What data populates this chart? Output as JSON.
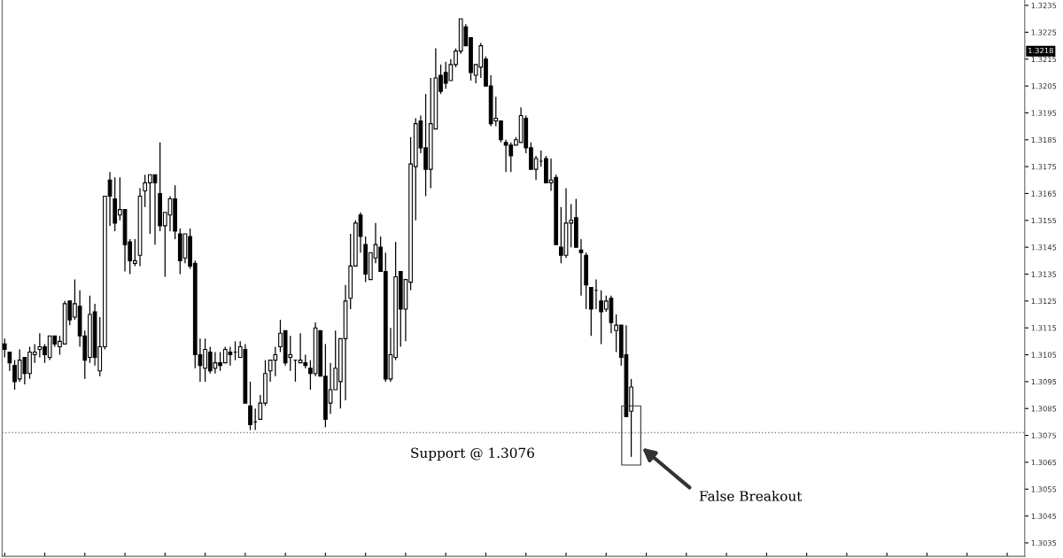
{
  "chart_data": {
    "type": "candlestick",
    "categories": [
      null,
      null,
      null,
      null,
      null,
      null,
      null,
      null,
      null,
      null,
      null,
      null,
      null,
      null,
      null,
      null,
      null,
      null,
      null,
      null,
      null,
      null,
      null,
      null,
      null,
      null,
      null,
      null,
      null,
      null,
      null,
      null,
      null,
      null,
      null,
      null,
      null,
      null,
      null,
      null,
      null,
      null,
      null,
      null,
      null,
      null,
      null,
      null,
      null,
      null,
      null,
      null,
      null,
      null,
      null,
      null,
      null,
      null,
      null,
      null,
      null,
      null,
      null,
      null,
      null,
      null,
      null,
      null,
      null,
      null,
      null,
      null,
      null,
      null,
      null,
      null,
      null,
      null,
      null,
      null,
      null,
      null,
      null,
      null,
      null,
      null,
      null,
      null,
      null,
      null,
      null,
      null,
      null,
      null,
      null,
      null,
      null,
      null,
      null,
      null,
      null,
      null,
      null,
      null,
      null,
      null,
      null,
      null,
      null,
      null,
      null,
      null,
      null,
      null,
      null,
      null,
      null,
      null,
      null,
      null,
      null,
      null,
      null,
      null,
      null,
      null,
      null,
      null,
      null,
      null,
      null,
      null,
      null,
      null,
      null,
      null,
      null,
      null,
      null,
      null,
      null,
      null,
      null,
      null,
      null,
      null,
      null,
      null,
      null,
      null,
      null,
      null,
      null,
      null,
      null,
      null,
      null,
      null,
      null,
      null,
      null,
      null,
      null,
      null,
      null,
      null,
      null,
      null,
      null,
      null,
      null,
      null,
      null,
      null,
      null,
      null,
      null,
      null,
      null,
      null,
      null,
      null,
      null,
      null,
      null,
      null,
      null,
      null,
      null,
      null,
      null,
      null,
      null,
      null,
      null,
      null,
      null,
      null,
      null,
      null,
      null,
      null,
      null,
      null
    ],
    "ohlc": [
      [
        1.3109,
        1.3111,
        1.3104,
        1.3107
      ],
      [
        1.3106,
        1.3106,
        1.3099,
        1.3102
      ],
      [
        1.3101,
        1.3103,
        1.3092,
        1.3095
      ],
      [
        1.3096,
        1.3107,
        1.3095,
        1.3103
      ],
      [
        1.3104,
        1.3104,
        1.3094,
        1.3098
      ],
      [
        1.3098,
        1.3108,
        1.3096,
        1.3106
      ],
      [
        1.3105,
        1.3109,
        1.3102,
        1.3106
      ],
      [
        1.3107,
        1.3113,
        1.3104,
        1.3108
      ],
      [
        1.3108,
        1.3109,
        1.3102,
        1.3105
      ],
      [
        1.3104,
        1.3112,
        1.3103,
        1.3112
      ],
      [
        1.3112,
        1.3112,
        1.3108,
        1.3109
      ],
      [
        1.3108,
        1.3112,
        1.3105,
        1.311
      ],
      [
        1.3109,
        1.3125,
        1.3109,
        1.3124
      ],
      [
        1.3125,
        1.3125,
        1.3116,
        1.3118
      ],
      [
        1.3119,
        1.3133,
        1.3118,
        1.3124
      ],
      [
        1.3123,
        1.3129,
        1.3108,
        1.3112
      ],
      [
        1.3112,
        1.3114,
        1.3096,
        1.3103
      ],
      [
        1.3104,
        1.3127,
        1.3102,
        1.312
      ],
      [
        1.3121,
        1.3124,
        1.3101,
        1.3104
      ],
      [
        1.3099,
        1.3119,
        1.3097,
        1.3108
      ],
      [
        1.3108,
        1.3164,
        1.3107,
        1.3164
      ],
      [
        1.317,
        1.3173,
        1.3153,
        1.3164
      ],
      [
        1.3163,
        1.3171,
        1.3151,
        1.3154
      ],
      [
        1.3157,
        1.3171,
        1.3155,
        1.3159
      ],
      [
        1.3159,
        1.3159,
        1.3136,
        1.3146
      ],
      [
        1.3147,
        1.3148,
        1.3135,
        1.314
      ],
      [
        1.3139,
        1.3148,
        1.3138,
        1.314
      ],
      [
        1.3142,
        1.3167,
        1.3138,
        1.3164
      ],
      [
        1.3166,
        1.3172,
        1.316,
        1.3169
      ],
      [
        1.3169,
        1.3172,
        1.315,
        1.3172
      ],
      [
        1.3172,
        1.3172,
        1.3146,
        1.3169
      ],
      [
        1.3165,
        1.3184,
        1.3151,
        1.3153
      ],
      [
        1.3153,
        1.3158,
        1.3134,
        1.3158
      ],
      [
        1.3157,
        1.3164,
        1.3151,
        1.3163
      ],
      [
        1.3163,
        1.3168,
        1.3148,
        1.3151
      ],
      [
        1.315,
        1.3152,
        1.3135,
        1.314
      ],
      [
        1.3141,
        1.315,
        1.3139,
        1.315
      ],
      [
        1.3149,
        1.3152,
        1.3137,
        1.3138
      ],
      [
        1.3139,
        1.314,
        1.31,
        1.3105
      ],
      [
        1.3105,
        1.3111,
        1.3095,
        1.3101
      ],
      [
        1.31,
        1.3111,
        1.3095,
        1.3107
      ],
      [
        1.3106,
        1.3108,
        1.3098,
        1.3099
      ],
      [
        1.31,
        1.3106,
        1.3098,
        1.3102
      ],
      [
        1.3102,
        1.3106,
        1.3099,
        1.3101
      ],
      [
        1.3102,
        1.3108,
        1.3102,
        1.3107
      ],
      [
        1.3106,
        1.3108,
        1.3101,
        1.3105
      ],
      [
        1.3106,
        1.311,
        1.3103,
        1.3106
      ],
      [
        1.3104,
        1.311,
        1.3104,
        1.3108
      ],
      [
        1.3107,
        1.3109,
        1.3087,
        1.3087
      ],
      [
        1.3086,
        1.3095,
        1.3077,
        1.3079
      ],
      [
        1.308,
        1.3085,
        1.3077,
        1.308
      ],
      [
        1.3081,
        1.309,
        1.3081,
        1.3087
      ],
      [
        1.3087,
        1.3103,
        1.3086,
        1.3098
      ],
      [
        1.3099,
        1.3103,
        1.3095,
        1.3103
      ],
      [
        1.3103,
        1.3108,
        1.3097,
        1.3105
      ],
      [
        1.3108,
        1.3118,
        1.3106,
        1.3113
      ],
      [
        1.3114,
        1.3114,
        1.3101,
        1.3102
      ],
      [
        1.3104,
        1.3112,
        1.3099,
        1.3105
      ],
      [
        1.3103,
        1.3103,
        1.3095,
        1.3103
      ],
      [
        1.3102,
        1.3113,
        1.3102,
        1.3103
      ],
      [
        1.3102,
        1.3105,
        1.31,
        1.3101
      ],
      [
        1.31,
        1.3103,
        1.3092,
        1.3098
      ],
      [
        1.3098,
        1.3117,
        1.3097,
        1.3115
      ],
      [
        1.3114,
        1.3114,
        1.3097,
        1.3097
      ],
      [
        1.3097,
        1.3109,
        1.3078,
        1.3081
      ],
      [
        1.3087,
        1.3102,
        1.3083,
        1.3092
      ],
      [
        1.3092,
        1.3114,
        1.3092,
        1.31
      ],
      [
        1.3095,
        1.3111,
        1.3085,
        1.3111
      ],
      [
        1.3111,
        1.3131,
        1.3088,
        1.3125
      ],
      [
        1.3126,
        1.315,
        1.3122,
        1.3138
      ],
      [
        1.3138,
        1.3155,
        1.3138,
        1.3154
      ],
      [
        1.3157,
        1.3158,
        1.3143,
        1.3149
      ],
      [
        1.3146,
        1.3149,
        1.3132,
        1.3135
      ],
      [
        1.3133,
        1.3143,
        1.3133,
        1.3143
      ],
      [
        1.3141,
        1.3154,
        1.3139,
        1.3146
      ],
      [
        1.3145,
        1.3149,
        1.3136,
        1.3136
      ],
      [
        1.3136,
        1.3143,
        1.3095,
        1.3096
      ],
      [
        1.3096,
        1.3115,
        1.3095,
        1.3105
      ],
      [
        1.3104,
        1.3147,
        1.3103,
        1.3134
      ],
      [
        1.3136,
        1.3136,
        1.3108,
        1.3122
      ],
      [
        1.3122,
        1.3133,
        1.311,
        1.3133
      ],
      [
        1.3132,
        1.3186,
        1.3129,
        1.3176
      ],
      [
        1.3175,
        1.3193,
        1.3155,
        1.3191
      ],
      [
        1.3192,
        1.3194,
        1.318,
        1.3182
      ],
      [
        1.3182,
        1.3202,
        1.3164,
        1.3174
      ],
      [
        1.3174,
        1.3208,
        1.3167,
        1.3191
      ],
      [
        1.3189,
        1.3219,
        1.3189,
        1.3208
      ],
      [
        1.3209,
        1.3213,
        1.3202,
        1.3203
      ],
      [
        1.321,
        1.3214,
        1.3204,
        1.3206
      ],
      [
        1.3207,
        1.3215,
        1.3207,
        1.3213
      ],
      [
        1.3213,
        1.3219,
        1.3212,
        1.3218
      ],
      [
        1.3218,
        1.323,
        1.3217,
        1.323
      ],
      [
        1.3227,
        1.3228,
        1.322,
        1.322
      ],
      [
        1.3223,
        1.3223,
        1.3207,
        1.321
      ],
      [
        1.3209,
        1.3213,
        1.3206,
        1.3213
      ],
      [
        1.3212,
        1.3221,
        1.3208,
        1.322
      ],
      [
        1.3215,
        1.3216,
        1.3205,
        1.3205
      ],
      [
        1.3205,
        1.3209,
        1.319,
        1.3191
      ],
      [
        1.3192,
        1.3201,
        1.319,
        1.3193
      ],
      [
        1.3192,
        1.3192,
        1.3184,
        1.3185
      ],
      [
        1.3184,
        1.3185,
        1.3173,
        1.3183
      ],
      [
        1.3183,
        1.3184,
        1.3173,
        1.3179
      ],
      [
        1.3183,
        1.3186,
        1.3183,
        1.3185
      ],
      [
        1.3184,
        1.3197,
        1.3184,
        1.3194
      ],
      [
        1.3193,
        1.3194,
        1.318,
        1.3182
      ],
      [
        1.3182,
        1.3184,
        1.3174,
        1.3174
      ],
      [
        1.3174,
        1.3179,
        1.317,
        1.3178
      ],
      [
        1.3177,
        1.3181,
        1.3175,
        1.3177
      ],
      [
        1.3178,
        1.3179,
        1.3169,
        1.3169
      ],
      [
        1.3169,
        1.3178,
        1.3166,
        1.317
      ],
      [
        1.3171,
        1.3172,
        1.3146,
        1.3146
      ],
      [
        1.3145,
        1.316,
        1.3139,
        1.3142
      ],
      [
        1.3142,
        1.3167,
        1.3141,
        1.3154
      ],
      [
        1.3154,
        1.3161,
        1.3145,
        1.3155
      ],
      [
        1.3156,
        1.3163,
        1.3145,
        1.3145
      ],
      [
        1.3144,
        1.3148,
        1.3127,
        1.3143
      ],
      [
        1.3142,
        1.3143,
        1.3122,
        1.3131
      ],
      [
        1.313,
        1.313,
        1.3112,
        1.3122
      ],
      [
        1.3129,
        1.3133,
        1.3122,
        1.3129
      ],
      [
        1.3125,
        1.3129,
        1.3109,
        1.3121
      ],
      [
        1.3122,
        1.3127,
        1.3121,
        1.3125
      ],
      [
        1.3126,
        1.3127,
        1.3113,
        1.3117
      ],
      [
        1.3114,
        1.312,
        1.3106,
        1.3116
      ],
      [
        1.3116,
        1.3116,
        1.3101,
        1.3104
      ],
      [
        1.3105,
        1.3116,
        1.3082,
        1.3082
      ],
      [
        1.3084,
        1.3096,
        1.3067,
        1.3093
      ],
      null,
      null,
      null,
      null,
      null,
      null,
      null,
      null,
      null,
      null,
      null,
      null,
      null,
      null,
      null,
      null,
      null,
      null,
      null,
      null,
      null,
      null,
      null,
      null,
      null,
      null,
      null,
      null,
      null,
      null,
      null,
      null,
      null,
      null,
      null,
      null,
      null,
      null,
      null,
      null,
      null,
      null,
      null,
      null,
      null,
      null,
      null,
      null,
      null,
      null,
      null,
      null,
      null,
      null,
      null,
      null,
      null,
      null,
      null,
      null,
      null,
      null,
      null,
      null,
      null,
      null,
      null,
      null,
      null,
      null,
      null,
      null,
      null,
      null,
      null,
      null,
      null,
      null
    ],
    "ylim": [
      1.303,
      1.3237
    ],
    "yticks": [
      1.3035,
      1.3045,
      1.3055,
      1.3065,
      1.3075,
      1.3085,
      1.3095,
      1.3105,
      1.3115,
      1.3125,
      1.3135,
      1.3145,
      1.3155,
      1.3165,
      1.3175,
      1.3185,
      1.3195,
      1.3205,
      1.3215,
      1.3225,
      1.3235
    ],
    "tick_labels": "y",
    "grid": false,
    "ref_lines": [
      {
        "axis": "y",
        "value": 1.3076,
        "label": "Support @ 1.3076",
        "color": "#888888",
        "line_style": "dotted"
      }
    ],
    "annotations": [
      "1.3218",
      "False Breakout"
    ]
  }
}
